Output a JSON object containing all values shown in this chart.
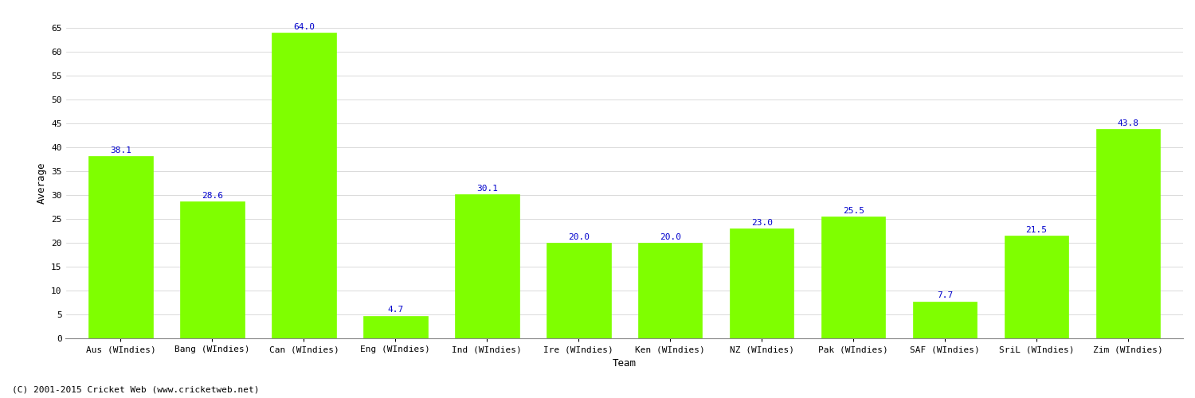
{
  "categories": [
    "Aus (WIndies)",
    "Bang (WIndies)",
    "Can (WIndies)",
    "Eng (WIndies)",
    "Ind (WIndies)",
    "Ire (WIndies)",
    "Ken (WIndies)",
    "NZ (WIndies)",
    "Pak (WIndies)",
    "SAF (WIndies)",
    "SriL (WIndies)",
    "Zim (WIndies)"
  ],
  "values": [
    38.1,
    28.6,
    64.0,
    4.7,
    30.1,
    20.0,
    20.0,
    23.0,
    25.5,
    7.7,
    21.5,
    43.8
  ],
  "bar_color": "#7FFF00",
  "bar_edge_color": "#7FFF00",
  "label_color": "#0000CC",
  "xlabel": "Team",
  "ylabel": "Average",
  "ylim": [
    0,
    65
  ],
  "yticks": [
    0,
    5,
    10,
    15,
    20,
    25,
    30,
    35,
    40,
    45,
    50,
    55,
    60,
    65
  ],
  "background_color": "#ffffff",
  "grid_color": "#cccccc",
  "footer_text": "(C) 2001-2015 Cricket Web (www.cricketweb.net)",
  "label_fontsize": 8,
  "axis_label_fontsize": 9,
  "tick_fontsize": 8,
  "footer_fontsize": 8,
  "bar_width": 0.7
}
